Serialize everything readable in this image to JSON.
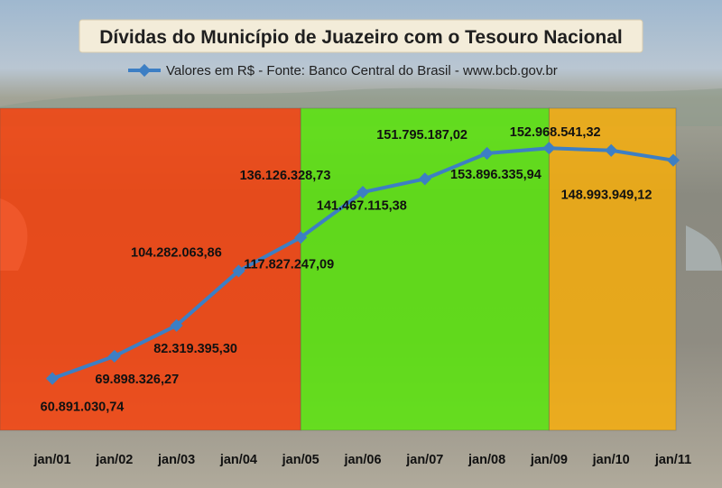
{
  "chart_data": {
    "type": "line",
    "title": "Dívidas do Município de Juazeiro com o Tesouro Nacional",
    "legend": {
      "position": "top",
      "entries": [
        "Valores em R$ - Fonte: Banco Central do Brasil - www.bcb.gov.br"
      ]
    },
    "categories": [
      "jan/01",
      "jan/02",
      "jan/03",
      "jan/04",
      "jan/05",
      "jan/06",
      "jan/07",
      "jan/08",
      "jan/09",
      "jan/10",
      "jan/11"
    ],
    "series": [
      {
        "name": "Valores em R$ - Fonte: Banco Central do Brasil - www.bcb.gov.br",
        "color": "#3d7fc4",
        "values": [
          60891030.74,
          69898326.27,
          82319395.3,
          104282063.86,
          117827247.09,
          136126328.73,
          141467115.38,
          151795187.02,
          153896335.94,
          152968541.32,
          148993949.12
        ],
        "labels": [
          "60.891.030,74",
          "69.898.326,27",
          "82.319.395,30",
          "104.282.063,86",
          "117.827.247,09",
          "136.126.328,73",
          "141.467.115,38",
          "151.795.187,02",
          "153.896.335,94",
          "152.968.541,32",
          "148.993.949,12"
        ]
      }
    ],
    "background_bands": [
      {
        "from": "jan/01",
        "to": "jan/05",
        "color": "#ff3a00"
      },
      {
        "from": "jan/05",
        "to": "jan/09",
        "color": "#55ee00"
      },
      {
        "from": "jan/09",
        "to": "jan/11",
        "color": "#ffb000"
      }
    ],
    "ylim": [
      40000000,
      170000000
    ],
    "grid": false,
    "xlabel": "",
    "ylabel": ""
  }
}
